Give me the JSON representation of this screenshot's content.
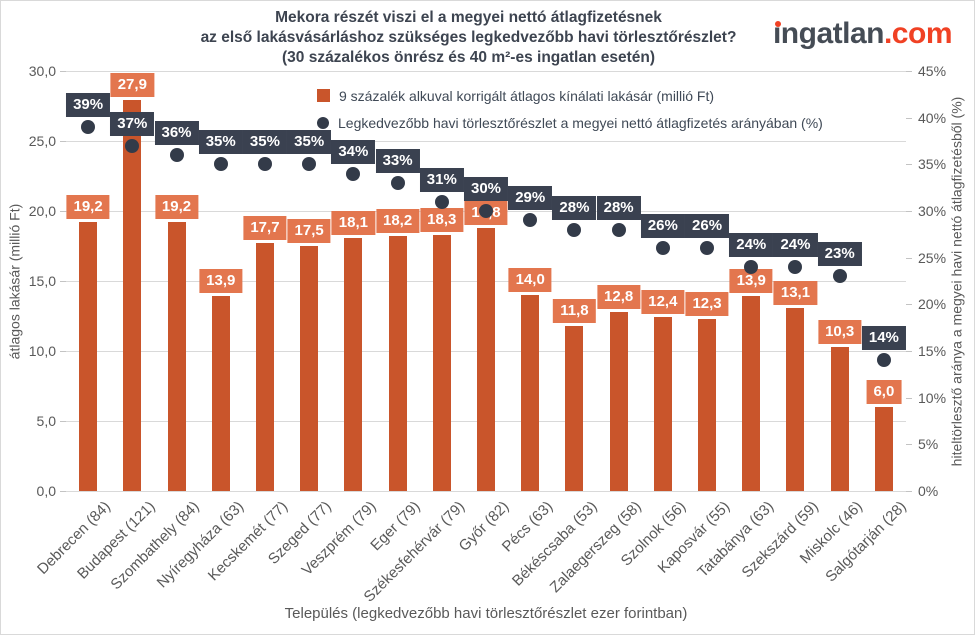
{
  "logo": {
    "name": "ingatlan",
    "tld": ".com",
    "name_color": "#454c55",
    "tld_color": "#f04124",
    "dot_color": "#f04124"
  },
  "chart_data": {
    "type": "bar",
    "title_lines": [
      "Mekora részét viszi el a megyei nettó átlagfizetésnek",
      "az első lakásvásárláshoz szükséges legkedvezőbb havi törlesztőrészlet?",
      "(30 százalékos önrész és 40 m²-es ingatlan esetén)"
    ],
    "categories": [
      "Debrecen (84)",
      "Budapest (121)",
      "Szombathely (84)",
      "Nyíregyháza (63)",
      "Kecskemét (77)",
      "Szeged (77)",
      "Veszprém (79)",
      "Eger (79)",
      "Székesfehérvár (79)",
      "Győr (82)",
      "Pécs (63)",
      "Békéscsaba (53)",
      "Zalaegerszeg (58)",
      "Szolnok (56)",
      "Kaposvár (55)",
      "Tatabánya (63)",
      "Szekszárd (59)",
      "Miskolc (46)",
      "Salgótarján (28)"
    ],
    "series": [
      {
        "name": "9 százalék alkuval korrigált átlagos kínálati lakásár (millió Ft)",
        "type": "bar",
        "axis": "left",
        "values": [
          19.2,
          27.9,
          19.2,
          13.9,
          17.7,
          17.5,
          18.1,
          18.2,
          18.3,
          18.8,
          14.0,
          11.8,
          12.8,
          12.4,
          12.3,
          13.9,
          13.1,
          10.3,
          6.0
        ],
        "labels": [
          "19,2",
          "27,9",
          "19,2",
          "13,9",
          "17,7",
          "17,5",
          "18,1",
          "18,2",
          "18,3",
          "18,8",
          "14,0",
          "11,8",
          "12,8",
          "12,4",
          "12,3",
          "13,9",
          "13,1",
          "10,3",
          "6,0"
        ]
      },
      {
        "name": "Legkedvezőbb havi törlesztőrészlet a megyei nettó átlagfizetés arányában (%)",
        "type": "scatter",
        "axis": "right",
        "values": [
          39,
          37,
          36,
          35,
          35,
          35,
          34,
          33,
          31,
          30,
          29,
          28,
          28,
          26,
          26,
          24,
          24,
          23,
          14
        ],
        "labels": [
          "39%",
          "37%",
          "36%",
          "35%",
          "35%",
          "35%",
          "34%",
          "33%",
          "31%",
          "30%",
          "29%",
          "28%",
          "28%",
          "26%",
          "26%",
          "24%",
          "24%",
          "23%",
          "14%"
        ]
      }
    ],
    "left_axis": {
      "label": "átlagos lakásár (millió Ft)",
      "min": 0,
      "max": 30,
      "ticks": [
        "30,0",
        "25,0",
        "20,0",
        "15,0",
        "10,0",
        "5,0",
        "0,0"
      ]
    },
    "right_axis": {
      "label": "hiteltörlesztő aránya a megyei havi nettó átlagfizetésből (%)",
      "min": 0,
      "max": 45,
      "ticks": [
        "45%",
        "40%",
        "35%",
        "30%",
        "25%",
        "20%",
        "15%",
        "10%",
        "5%",
        "0%"
      ]
    },
    "x_axis": {
      "label": "Település (legkedvezőbb havi törlesztőrészlet ezer forintban)"
    },
    "legend_position": "top-center",
    "grid": "horizontal",
    "colors": {
      "bar": "#c9552b",
      "bar_label_bg": "#e3764e",
      "dot": "#333b49",
      "dot_label_bg": "#3a4150",
      "grid": "#d9d9d9",
      "tick_text": "#595959",
      "title_text": "#3d4450"
    }
  }
}
